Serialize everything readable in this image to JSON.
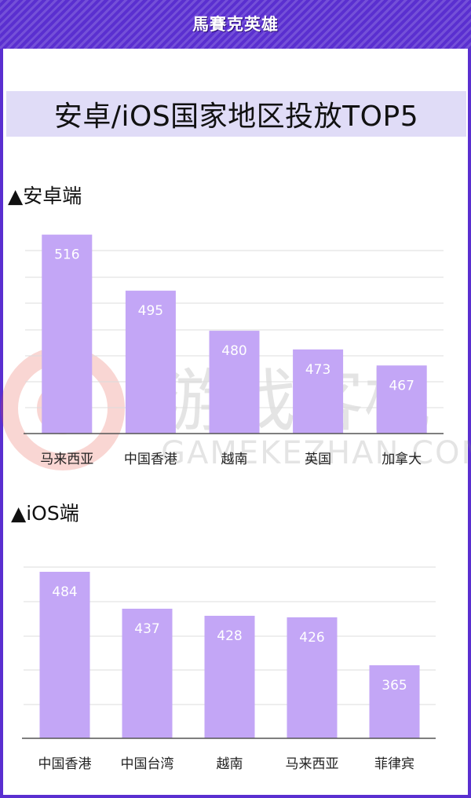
{
  "header": {
    "title": "馬賽克英雄"
  },
  "main_title": "安卓/iOS国家地区投放TOP5",
  "watermark": {
    "text": "游戏客栈",
    "sub": "GAMEKEZHAN.COM"
  },
  "colors": {
    "accent": "#5a2fd0",
    "bar": "#c3a6f6",
    "title_bg": "#e0dcf7"
  },
  "chart_data": [
    {
      "type": "bar",
      "title": "▲安卓端",
      "categories": [
        "马来西亚",
        "中国香港",
        "越南",
        "英国",
        "加拿大"
      ],
      "values": [
        516,
        495,
        480,
        473,
        467
      ]
    },
    {
      "type": "bar",
      "title": "▲iOS端",
      "categories": [
        "中国香港",
        "中国台湾",
        "越南",
        "马来西亚",
        "菲律宾"
      ],
      "values": [
        484,
        437,
        428,
        426,
        365
      ]
    }
  ]
}
